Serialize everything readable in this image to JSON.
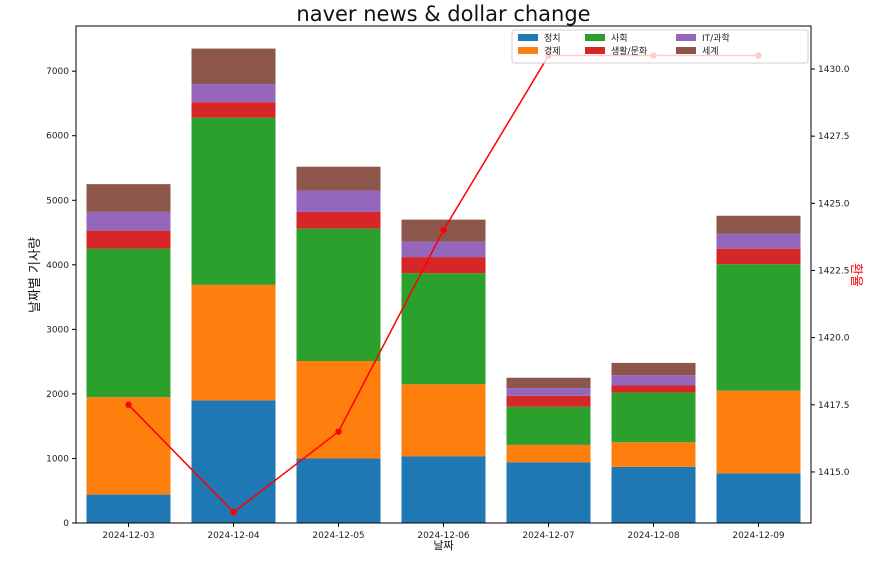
{
  "chart_data": {
    "type": "bar",
    "stacked": true,
    "title": "naver news & dollar change",
    "xlabel": "날짜",
    "ylabel": "날짜별 기사량",
    "y2label": "환율",
    "categories": [
      "2024-12-03",
      "2024-12-04",
      "2024-12-05",
      "2024-12-06",
      "2024-12-07",
      "2024-12-08",
      "2024-12-09"
    ],
    "ylim": [
      0,
      7700
    ],
    "yticks": [
      0,
      1000,
      2000,
      3000,
      4000,
      5000,
      6000,
      7000
    ],
    "y2lim": [
      1413.1,
      1431.6
    ],
    "y2ticks": [
      1415.0,
      1417.5,
      1420.0,
      1422.5,
      1425.0,
      1427.5,
      1430.0
    ],
    "y2ticklabels": [
      "1415.0",
      "1417.5",
      "1420.0",
      "1422.5",
      "1425.0",
      "1427.5",
      "1430.0"
    ],
    "series": [
      {
        "name": "정치",
        "color": "#1f77b4",
        "values": [
          440,
          1900,
          1000,
          1030,
          940,
          870,
          770
        ]
      },
      {
        "name": "경제",
        "color": "#ff7f0e",
        "values": [
          1510,
          1790,
          1510,
          1120,
          270,
          380,
          1280
        ]
      },
      {
        "name": "사회",
        "color": "#2ca02c",
        "values": [
          2300,
          2590,
          2050,
          1720,
          590,
          770,
          1960
        ]
      },
      {
        "name": "생활/문화",
        "color": "#d62728",
        "values": [
          280,
          240,
          260,
          250,
          170,
          110,
          240
        ]
      },
      {
        "name": "IT/과학",
        "color": "#9467bd",
        "values": [
          290,
          280,
          330,
          240,
          120,
          160,
          230
        ]
      },
      {
        "name": "세계",
        "color": "#8c564b",
        "values": [
          430,
          550,
          370,
          340,
          160,
          190,
          280
        ]
      }
    ],
    "line": {
      "name": "환율",
      "color": "#ff0000",
      "values": [
        1417.5,
        1413.5,
        1416.5,
        1424.0,
        1430.5,
        1430.5,
        1430.5
      ]
    },
    "legend_position": "top-right",
    "grid": false
  }
}
